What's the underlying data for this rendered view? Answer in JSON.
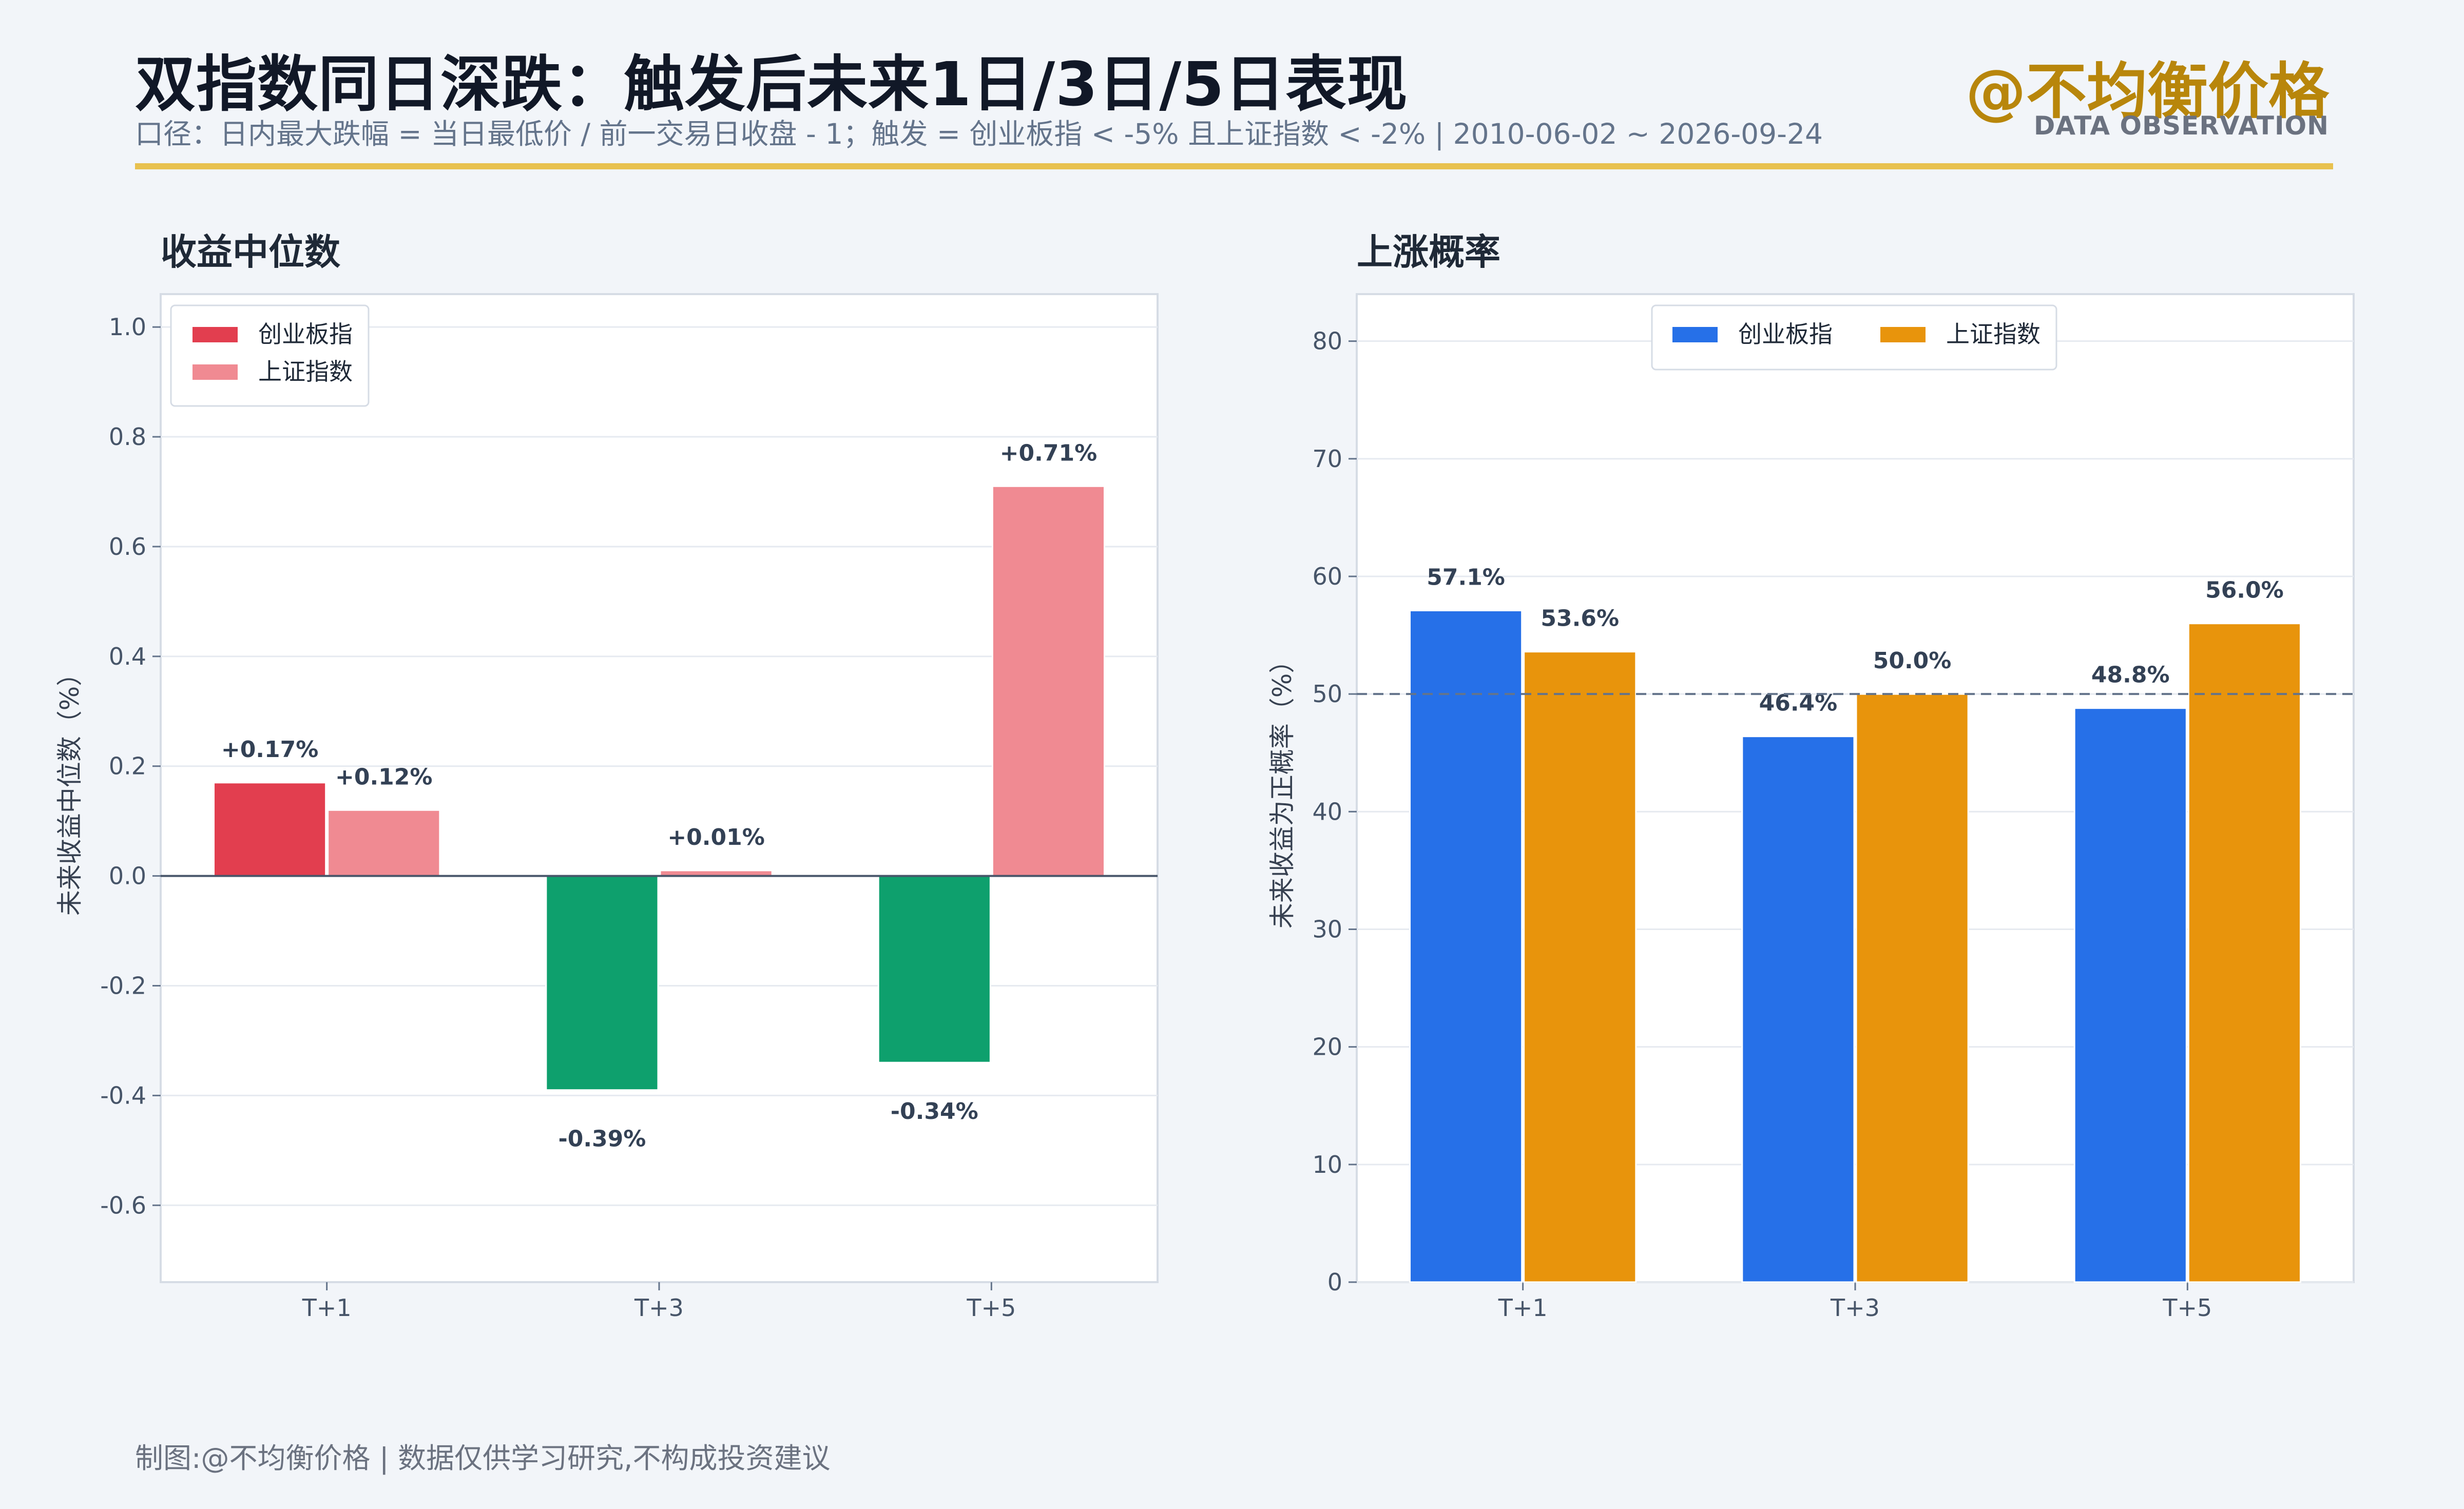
{
  "header": {
    "title": "双指数同日深跌：触发后未来1日/3日/5日表现",
    "subtitle": "口径：日内最大跌幅 = 当日最低价 / 前一交易日收盘 - 1；触发 = 创业板指 < -5% 且上证指数 < -2% | 2010-06-02 ~ 2026-09-24",
    "brand": "@不均衡价格",
    "brand_sub": "DATA OBSERVATION"
  },
  "footer": {
    "text": "制图:@不均衡价格 | 数据仅供学习研究,不构成投资建议"
  },
  "colors": {
    "gold": "#E8C14F",
    "cyb_positive": "#E23E4F",
    "sz_positive": "#F08A92",
    "negative": "#0EA06D",
    "cyb_blue": "#2670E8",
    "sz_orange": "#E8940C"
  },
  "chart_data": [
    {
      "type": "bar",
      "title": "收益中位数",
      "ylabel": "未来收益中位数（%）",
      "categories": [
        "T+1",
        "T+3",
        "T+5"
      ],
      "series": [
        {
          "name": "创业板指",
          "values": [
            0.17,
            -0.39,
            -0.34
          ],
          "labels": [
            "+0.17%",
            "-0.39%",
            "-0.34%"
          ]
        },
        {
          "name": "上证指数",
          "values": [
            0.12,
            0.01,
            0.71
          ],
          "labels": [
            "+0.12%",
            "+0.01%",
            "+0.71%"
          ]
        }
      ],
      "ylim": [
        -0.74,
        1.06
      ],
      "yticks": [
        1.0,
        0.8,
        0.6,
        0.4,
        0.2,
        0.0,
        -0.2,
        -0.4,
        -0.6
      ],
      "ytick_labels": [
        "1.0",
        "0.8",
        "0.6",
        "0.4",
        "0.2",
        "0.0",
        "-0.2",
        "-0.4",
        "-0.6"
      ],
      "negative_color": "#0EA06D",
      "legend": "top-left",
      "grid": true
    },
    {
      "type": "bar",
      "title": "上涨概率",
      "ylabel": "未来收益为正概率（%）",
      "categories": [
        "T+1",
        "T+3",
        "T+5"
      ],
      "series": [
        {
          "name": "创业板指",
          "values": [
            57.1,
            46.4,
            48.8
          ],
          "labels": [
            "57.1%",
            "46.4%",
            "48.8%"
          ]
        },
        {
          "name": "上证指数",
          "values": [
            53.6,
            50.0,
            56.0
          ],
          "labels": [
            "53.6%",
            "50.0%",
            "56.0%"
          ]
        }
      ],
      "ylim": [
        0,
        84
      ],
      "yticks": [
        0,
        10,
        20,
        30,
        40,
        50,
        60,
        70,
        80
      ],
      "ytick_labels": [
        "0",
        "10",
        "20",
        "30",
        "40",
        "50",
        "60",
        "70",
        "80"
      ],
      "reference_line": 50,
      "legend": "top-center",
      "grid": true
    }
  ]
}
